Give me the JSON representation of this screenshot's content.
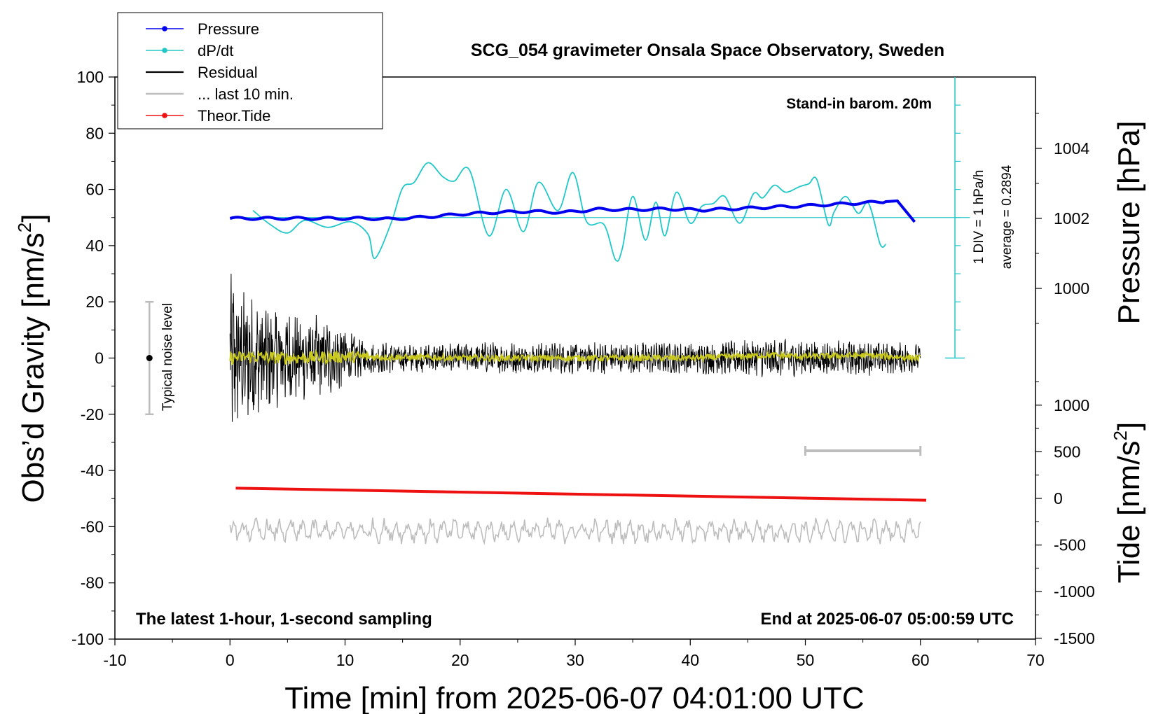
{
  "chart_data": {
    "type": "line",
    "title": "SCG_054 gravimeter Onsala Space Observatory, Sweden",
    "xlabel": "Time [min] from 2025-06-07 04:01:00 UTC",
    "ylabel_left_main": "Obs’d Gravity [nm/s",
    "ylabel_left_sup": "2",
    "ylabel_left_end": "]",
    "ylabel_right_pressure": "Pressure [hPa]",
    "ylabel_right_tide_main": "Tide [nm/s",
    "ylabel_right_tide_sup": "2",
    "ylabel_right_tide_end": "]",
    "xlim": [
      -10,
      70
    ],
    "ylim": [
      -100,
      100
    ],
    "pressure_ylim": [
      999,
      1005.2
    ],
    "tide_ylim": [
      -1500,
      1500
    ],
    "x_ticks": [
      "-10",
      "0",
      "10",
      "20",
      "30",
      "40",
      "50",
      "60",
      "70"
    ],
    "y_ticks": [
      "100",
      "80",
      "60",
      "40",
      "20",
      "0",
      "-20",
      "-40",
      "-60",
      "-80",
      "-100"
    ],
    "pressure_ticks": [
      "1004",
      "1002",
      "1000"
    ],
    "tide_ticks": [
      "1000",
      "500",
      "0",
      "-500",
      "-1000",
      "-1500"
    ],
    "grid": false,
    "legend_position": "top-left",
    "legend": [
      {
        "label": "Pressure",
        "color": "#0000ee",
        "marker": true
      },
      {
        "label": "dP/dt",
        "color": "#22c8c8",
        "marker": true
      },
      {
        "label": "Residual",
        "color": "#000000",
        "marker": false
      },
      {
        "label": "... last 10 min.",
        "color": "#bdbdbd",
        "marker": false
      },
      {
        "label": "Theor.Tide",
        "color": "#ee1111",
        "marker": true
      }
    ],
    "annotations": {
      "barom": "Stand-in barom. 20m",
      "div": "1 DIV = 1 hPa/h",
      "average": "average = 0.2894",
      "noise": "Typical noise level",
      "sampling": "The latest 1-hour, 1-second sampling",
      "end": "End at 2025-06-07 05:00:59 UTC"
    },
    "noise_bar": {
      "x": -7,
      "low": -20,
      "high": 20,
      "center": 0
    },
    "last10_bar": {
      "x_start": 50,
      "x_end": 60,
      "y": -33
    },
    "dpdt_zero_level": 50,
    "dpdt_scale_bar": {
      "x": 63,
      "bottom": 0,
      "top": 100
    },
    "series": [
      {
        "name": "Pressure",
        "color": "#0000ee",
        "units": "hPa",
        "x": [
          0,
          3,
          6,
          9,
          12,
          14,
          17,
          20,
          23,
          26,
          29,
          32,
          35,
          38,
          41,
          44,
          47,
          50,
          53,
          56,
          58,
          59.5
        ],
        "values": [
          1002.0,
          1002.0,
          1002.0,
          1002.0,
          1002.0,
          1001.98,
          1002.04,
          1002.12,
          1002.17,
          1002.2,
          1002.17,
          1002.26,
          1002.25,
          1002.27,
          1002.24,
          1002.28,
          1002.32,
          1002.36,
          1002.41,
          1002.46,
          1002.5,
          1001.9
        ]
      },
      {
        "name": "dP/dt",
        "color": "#22c8c8",
        "units": "nm/s2 axis, 1 DIV = 1 hPa/h",
        "x": [
          2,
          3.5,
          5,
          6.5,
          8.5,
          10.5,
          12,
          12.6,
          14,
          15,
          16,
          17.2,
          18.5,
          19.5,
          20.8,
          22.5,
          24,
          25.5,
          26.8,
          28.5,
          29.8,
          31,
          32.5,
          33.5,
          34.1,
          35,
          36.1,
          37,
          37.8,
          38.8,
          40,
          41,
          42,
          43,
          44.3,
          45.5,
          46.3,
          47.3,
          48.3,
          49.5,
          50.3,
          51,
          52,
          52.5,
          53.5,
          54.6,
          55.5,
          56.5,
          57
        ],
        "values": [
          52.5,
          47.5,
          44.5,
          49,
          46.5,
          48.5,
          44,
          35.5,
          48,
          60.5,
          62.5,
          69.5,
          64.5,
          63,
          67,
          43.5,
          60,
          45,
          62.5,
          52.5,
          66,
          48.5,
          47.5,
          35,
          39,
          57.5,
          42,
          55.5,
          43.5,
          59,
          48,
          54,
          55,
          57.5,
          48,
          58.5,
          57,
          61.5,
          59,
          61,
          62,
          63.5,
          47.5,
          52,
          57.5,
          51.5,
          55,
          40.5,
          40.5
        ]
      },
      {
        "name": "Residual",
        "color": "#000000",
        "units": "nm/s2",
        "x": [
          0,
          0.5,
          1,
          1.5,
          2,
          2.5,
          3,
          3.5,
          4,
          5,
          6,
          7,
          8,
          9,
          10,
          11,
          12,
          15,
          20,
          25,
          30,
          35,
          40,
          45,
          47.5,
          50,
          55,
          60
        ],
        "values": [
          28,
          22,
          20,
          19,
          18,
          17,
          16,
          16,
          15,
          14,
          13,
          12,
          12,
          11,
          10,
          6,
          5,
          4,
          4.5,
          4.5,
          4.5,
          4.5,
          4.5,
          5,
          6,
          5,
          5,
          4
        ]
      },
      {
        "name": "Residual (smoothed)",
        "color": "#c8c81e",
        "units": "nm/s2",
        "x": [
          0,
          2,
          5,
          10,
          20,
          30,
          40,
          47,
          50,
          55,
          60
        ],
        "values": [
          0,
          0.5,
          0,
          0.5,
          0,
          0,
          0,
          1,
          0.5,
          1,
          0
        ]
      },
      {
        "name": "Theor.Tide",
        "color": "#ee1111",
        "units": "nm/s2",
        "x": [
          0.5,
          60.5
        ],
        "values": [
          110,
          -20
        ]
      },
      {
        "name": "... last 10 min.",
        "color": "#bdbdbd",
        "units": "nm/s2 (offset)",
        "x": [
          0,
          60
        ],
        "values": [
          -61.5,
          -61.5
        ]
      }
    ]
  }
}
